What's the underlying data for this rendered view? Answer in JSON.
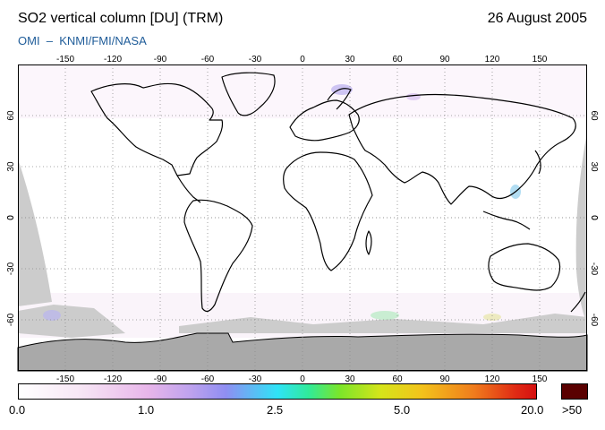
{
  "header": {
    "title": "SO2 vertical column [DU] (TRM)",
    "date": "26 August 2005",
    "credit": "OMI  –  KNMI/FMI/NASA"
  },
  "map": {
    "projection": "equirectangular",
    "lon_ticks": [
      "-150",
      "-120",
      "-90",
      "-60",
      "-30",
      "0",
      "30",
      "60",
      "90",
      "120",
      "150"
    ],
    "lat_ticks": [
      "60",
      "30",
      "0",
      "-30",
      "-60"
    ],
    "no_data_color": "#cccccc",
    "antarctica_color": "#a9a9a9",
    "graticule": "dotted"
  },
  "colorbar": {
    "labels": [
      "0.0",
      "1.0",
      "2.5",
      "5.0",
      "20.0"
    ],
    "overflow_label": ">50",
    "overflow_color": "#5a0000"
  }
}
